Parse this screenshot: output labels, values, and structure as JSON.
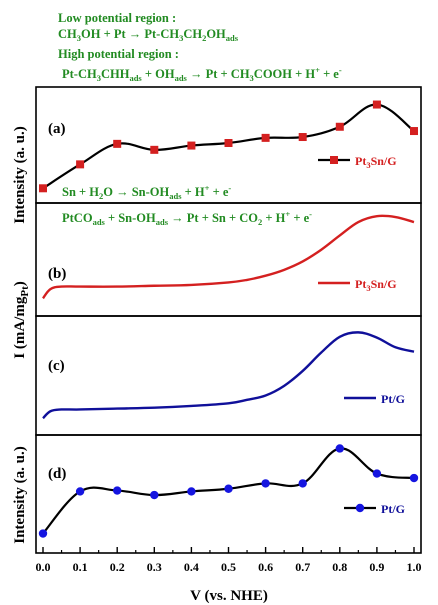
{
  "annotations": {
    "top": [
      {
        "text": "Low potential region :"
      },
      {
        "text": "CH3OH + Pt → Pt-CH3CH2OHads"
      },
      {
        "text": "High potential region :"
      },
      {
        "text": "Pt-CH3CHHads + OHads → Pt + CH3COOH + H+ + e-"
      }
    ],
    "sn_water": "Sn + H2O → Sn-OHads + H+ + e-",
    "ptco": "PtCOads + Sn-OHads → Pt + Sn + CO2 + H+ + e-"
  },
  "colors": {
    "red": "#d42020",
    "blue": "#10109a",
    "green": "#228b22",
    "black": "#000000"
  },
  "chart_data": [
    {
      "panel_label": "(a)",
      "type": "line",
      "ylabel": "Intensity (a. u.)",
      "legend": "Pt3Sn/G",
      "marker": "square",
      "x": [
        0.0,
        0.1,
        0.2,
        0.3,
        0.4,
        0.5,
        0.6,
        0.7,
        0.8,
        0.9,
        1.0
      ],
      "y": [
        0.02,
        0.3,
        0.54,
        0.47,
        0.52,
        0.55,
        0.61,
        0.62,
        0.74,
        1.0,
        0.69
      ],
      "ylim": [
        0,
        1.1
      ]
    },
    {
      "panel_label": "(b)",
      "type": "line",
      "legend": "Pt3Sn/G",
      "x": [
        0.0,
        0.02,
        0.05,
        0.1,
        0.2,
        0.3,
        0.4,
        0.5,
        0.55,
        0.6,
        0.65,
        0.7,
        0.75,
        0.8,
        0.85,
        0.9,
        0.95,
        1.0
      ],
      "y": [
        0.02,
        0.13,
        0.16,
        0.16,
        0.16,
        0.17,
        0.18,
        0.21,
        0.24,
        0.29,
        0.36,
        0.46,
        0.6,
        0.77,
        0.93,
        1.0,
        0.99,
        0.93
      ],
      "ylim": [
        0,
        1.05
      ]
    },
    {
      "panel_label": "(c)",
      "type": "line",
      "legend": "Pt/G",
      "x": [
        0.0,
        0.02,
        0.05,
        0.1,
        0.2,
        0.3,
        0.4,
        0.5,
        0.55,
        0.6,
        0.65,
        0.7,
        0.75,
        0.8,
        0.85,
        0.9,
        0.95,
        1.0
      ],
      "y": [
        0.02,
        0.1,
        0.12,
        0.12,
        0.13,
        0.14,
        0.16,
        0.19,
        0.23,
        0.28,
        0.39,
        0.56,
        0.77,
        0.95,
        1.0,
        0.94,
        0.83,
        0.78
      ],
      "ylim": [
        0,
        1.05
      ]
    },
    {
      "panel_label": "(d)",
      "type": "line",
      "ylabel": "Intensity (a. u.)",
      "legend": "Pt/G",
      "marker": "circle",
      "x": [
        0.0,
        0.1,
        0.2,
        0.3,
        0.4,
        0.5,
        0.6,
        0.7,
        0.8,
        0.9,
        1.0
      ],
      "y": [
        0.05,
        0.52,
        0.53,
        0.48,
        0.52,
        0.55,
        0.61,
        0.61,
        1.0,
        0.72,
        0.67
      ],
      "ylim": [
        0,
        1.05
      ]
    }
  ],
  "shared": {
    "ylabel_middle": "I (mA/mgPt)",
    "xlabel": "V (vs. NHE)",
    "xticks": [
      "0.0",
      "0.1",
      "0.2",
      "0.3",
      "0.4",
      "0.5",
      "0.6",
      "0.7",
      "0.8",
      "0.9",
      "1.0"
    ],
    "xlim": [
      0,
      1
    ]
  }
}
